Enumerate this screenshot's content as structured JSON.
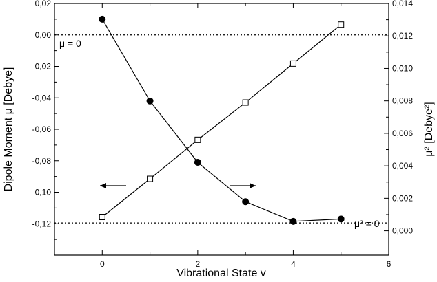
{
  "chart_data": {
    "type": "line",
    "xlabel": "Vibrational State v",
    "ylabel_left": "Dipole Moment μ [Debye]",
    "ylabel_right": "μ² [Debye²]",
    "xlim": [
      -1,
      6
    ],
    "ylim_left": [
      -0.14,
      0.02
    ],
    "ylim_right": [
      -0.0015,
      0.014
    ],
    "x_ticks": [
      "0",
      "2",
      "4",
      "6"
    ],
    "y_left_ticks": [
      "0,02",
      "0,00",
      "-0,02",
      "-0,04",
      "-0,06",
      "-0,08",
      "-0,10",
      "-0,12"
    ],
    "y_right_ticks": [
      "0,014",
      "0,012",
      "0,010",
      "0,008",
      "0,006",
      "0,004",
      "0,002",
      "0,000"
    ],
    "grid": false,
    "series": [
      {
        "axis": "left",
        "marker": "filled-circle",
        "x": [
          0,
          1,
          2,
          3,
          4,
          5
        ],
        "y": [
          0.01,
          -0.042,
          -0.081,
          -0.106,
          -0.1185,
          -0.117
        ]
      },
      {
        "axis": "right",
        "marker": "open-square",
        "x": [
          0,
          1,
          2,
          3,
          4,
          5
        ],
        "y": [
          0.00085,
          0.0032,
          0.0056,
          0.0079,
          0.0103,
          0.0127
        ]
      }
    ],
    "reference_lines": [
      {
        "axis": "left",
        "value": 0,
        "style": "dotted",
        "label": "μ = 0"
      },
      {
        "axis": "left",
        "value": -0.1195,
        "style": "dotted",
        "label": "μ² = 0"
      }
    ],
    "arrows": [
      {
        "direction": "left",
        "meaning": "left axis"
      },
      {
        "direction": "right",
        "meaning": "right axis"
      }
    ]
  }
}
